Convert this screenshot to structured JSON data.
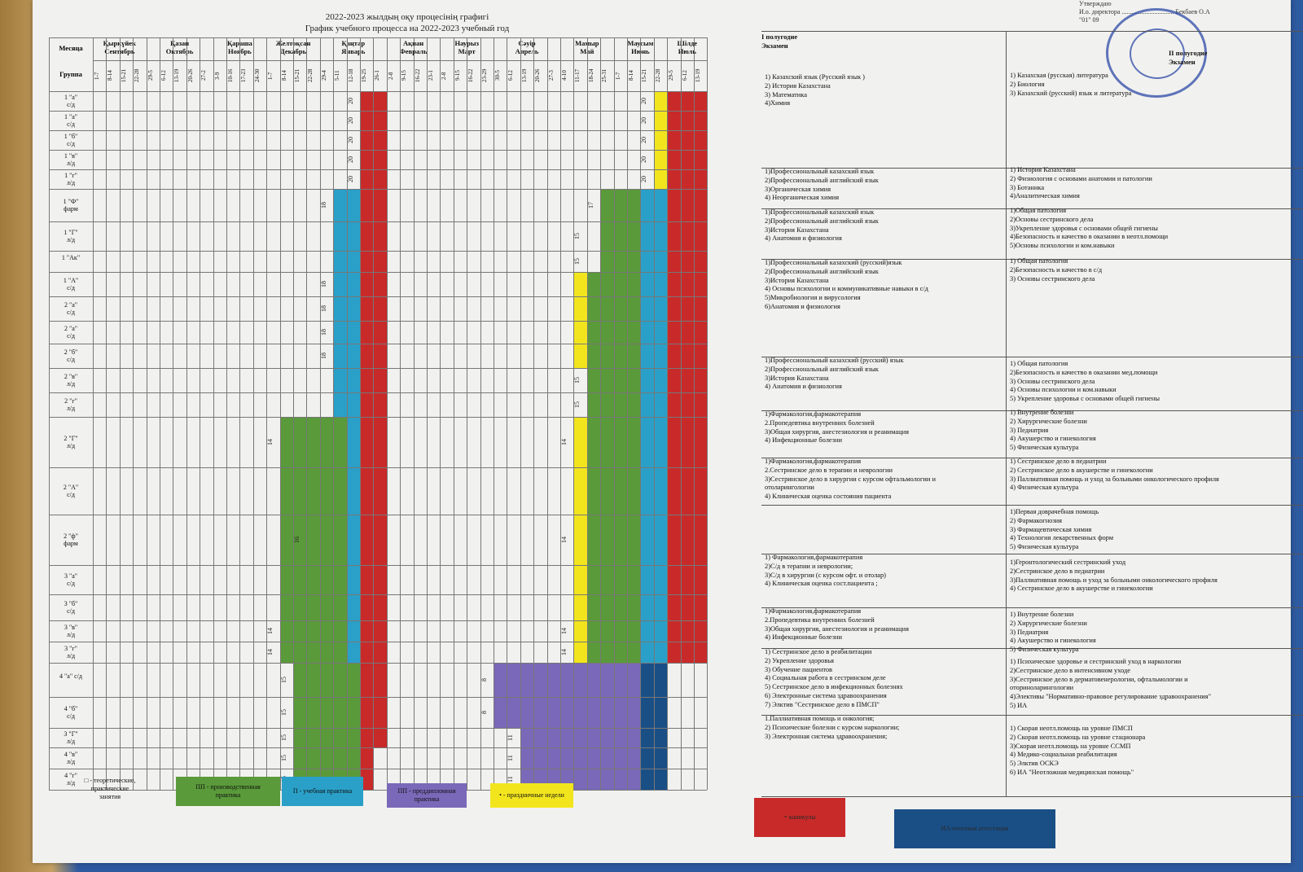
{
  "title_kz": "2022-2023 жылдың оқу процесінің графигі",
  "title_ru": "График учебного процесса на 2022-2023 учебный год",
  "approve": {
    "line1": "Утверждаю",
    "line2": "И.о. директора ................................ Бекбаев О.А",
    "line3": "\"01\" 09"
  },
  "header": {
    "month_label": "Месяца",
    "group_label": "Группа",
    "exam1_label": "І полугодие\nЭкзамен",
    "exam2_label": "ІІ полугодие\nЭкзамен"
  },
  "months": [
    {
      "kz": "Қыркүйек",
      "ru": "Сентябрь"
    },
    {
      "kz": "Қазан",
      "ru": "Октябрь"
    },
    {
      "kz": "Қараша",
      "ru": "Ноябрь"
    },
    {
      "kz": "Желтоқсан",
      "ru": "Декабрь"
    },
    {
      "kz": "Қаңтар",
      "ru": "Январь"
    },
    {
      "kz": "Ақпан",
      "ru": "Февраль"
    },
    {
      "kz": "Наурыз",
      "ru": "Март"
    },
    {
      "kz": "Сәуір",
      "ru": "Апрель"
    },
    {
      "kz": "Мамыр",
      "ru": "Май"
    },
    {
      "kz": "Маусым",
      "ru": "Июнь"
    },
    {
      "kz": "Шілде",
      "ru": "Июль"
    }
  ],
  "weeks": [
    "1-7",
    "8-14",
    "15-21",
    "22-28",
    "29-5",
    "6-12",
    "13-19",
    "20-26",
    "27-2",
    "3-9",
    "10-16",
    "17-23",
    "24-30",
    "1-7",
    "8-14",
    "15-21",
    "22-28",
    "29-4",
    "5-11",
    "12-18",
    "19-25",
    "26-1",
    "2-8",
    "9-15",
    "16-22",
    "23-1",
    "2-8",
    "9-15",
    "16-22",
    "23-29",
    "30-5",
    "6-12",
    "13-19",
    "20-26",
    "27-3",
    "4-10",
    "11-17",
    "18-24",
    "25-31",
    "1-7",
    "8-14",
    "15-21",
    "22-28",
    "29-5",
    "6-12",
    "13-19"
  ],
  "groups": [
    "1 \"а\"\nс/д",
    "1 \"а\"\nс/д",
    "1 \"б\"\nс/д",
    "1 \"в\"\nл/д",
    "1 \"г\"\nл/д",
    "1 \"Ф\"\nфарм",
    "1 \"Г\"\nл/д",
    "1 \"Ак\"",
    "1 \"А\"\nс/д",
    "2 \"а\"\nс/д",
    "2 \"а\"\nс/д",
    "2 \"б\"\nс/д",
    "2 \"в\"\nл/д",
    "2 \"г\"\nл/д",
    "2 \"Г\"\nл/д",
    "2 \"А\"\nс/д",
    "2 \"ф\"\nфарм",
    "3 \"а\"\nс/д",
    "3 \"б\"\nс/д",
    "3 \"в\"\nл/д",
    "3 \"г\"\nл/д",
    "4 \"а\" с/д",
    "4 \"б\"\nс/д",
    "3 \"Г\"\nл/д",
    "4 \"в\"\nл/д",
    "4 \"г\"\nл/д"
  ],
  "colors": {
    "theory": "#ffffff",
    "practice": "#5a9a3a",
    "educational": "#2aa0c8",
    "preddiploma": "#7a68b8",
    "holiday": "#f2e51e",
    "vacation": "#c82a2a",
    "final": "#1a4f86"
  },
  "cell_numbers": {
    "n20": "20",
    "n18": "18",
    "n17": "17",
    "n15": "15",
    "n14": "14",
    "n16": "16",
    "n11": "11",
    "n8": "8"
  },
  "exams_first": [
    "1) Казахский язык (Русский язык )\n2) История Казахстана\n3) Математика\n4)Химия",
    "1)Профессиональный казахский язык\n2)Профессиональный английский язык\n3)Органическая химия\n4) Неорганическая химия",
    "1)Профессиональный казахский язык\n2)Профессиональный английский язык\n3)История Казахстана\n4) Анатомия и физиология",
    "1)Профессиональный казахский (русский)язык\n2)Профессиональный английский язык\n3)История Казахстана\n4) Основы психологии и коммуникативные навыки в с/д\n5)Микробиология и вирусология\n6)Анатомия и физиология",
    "1)Профессиональный казахский (русский) язык\n2)Профессиональный английский язык\n3)История Казахстана\n4) Анатомия и физиология",
    "1)Фармакология,фармакотерапия\n2.Пропедевтика внутренних болезней\n3)Общая хирургия, анестезиология и реанимация\n4) Инфекционные болезни",
    "1)Фармакология,фармакотерапия\n2.Сестринское дело в терапии и неврологии\n3)Сестринское дело в хирургии с курсом офтальмологии и\nотоларингологии\n4) Клиническая оценка состояния пациента",
    "",
    "1) Фармакология,фармакотерапия\n2)С/д в терапии и неврологии;\n3)С/д в хирургии (с курсом офт. и отолар)\n4) Клиническая оценка сост.пациента ;",
    "1)Фармакология,фармакотерапия\n2.Пропедевтика внутренних болезней\n3)Общая хирургия, анестезиология и реанимация\n4) Инфекционные болезни",
    "1) Сестринское дело в реабилитации\n2) Укрепление здоровья\n3) Обучение пациентов\n4) Социальная работа в сестринском деле\n5) Сестринское дело в инфекционных болезнях\n6) Электронные система здравоохранения\n7) Элктив \"Сестринское дело в ПМСП\"",
    "1.Паллиативная помощь и онкология;\n2) Психические болезни с курсом наркологии;\n3) Электронная система здравоохранения;"
  ],
  "exams_second": [
    "1) Казахская (русская) литература\n2) Биология\n3) Казахский (русский) язык и литература",
    "1) История Казахстана\n2) Физиология с основами анатомии и патологии\n3) Ботаника\n4)Аналитическая химия",
    "1)Общая патология\n2)Основы сестринского дела\n3)Укрепление здоровья с основами общей гигиены\n4)Безопасность и качество в оказании в неотл.помощи\n5)Основы психологии и ком.навыки",
    "1) Общая патология\n2)Безопасность и качество в с/д\n3) Основы сестринского дела",
    "1) Общая патология\n2)Безопасность и качество в оказании мед.помощи\n3) Основы сестринского дела\n4) Основы психологии и ком.навыки\n5) Укрепление здоровья с основами общей гигиены",
    "1) Внутрение болезни\n2) Хирургические болезни\n3) Педиатрия\n4) Акушерство и гинекология\n5) Физическая культура",
    "1) Сестринское дело в педиатрии\n2) Сестринское дело в акушерстве и гинекологии\n3) Паллиативная помощь и уход за больными онкологического профиля\n4) Физическая культура",
    "1)Первая доврачебная помощь\n2) Фармакогнозия\n3) Фармацевтическая химия\n4) Технология лекарственных форм\n5) Физическая культура",
    "1)Геронтологический сестринский уход\n2)Сестринское дело в педиатрии\n3)Паллиативная помощь и уход за больными онкологического профиля\n4) Сестринское дело в акушерстве и гинекологии",
    "1) Внутрение болезни\n2) Хирургические болезни\n3) Педиатрия\n4) Акушерство и гинекология\n5) Физическая культура",
    "1) Психическое здоровье и сестринский уход в наркологии\n2)Сестринское дело в интенсивном уходе\n3)Сестринское дело в дерматовенерологии, офтальмологии и\nоториноларингологии\n4)Элективы \"Нормативно-правовое регулирование здравоохранения\"\n5) ИА",
    "1) Скорая неотл.помощь на уровне ПМСП\n2) Скорая неотл.помощь на уровне стационара\n3)Скорая неотл.помощь на уровне ССМП\n4) Медико-социальная реабилитация\n5) Элктив ОСКЭ\n6) ИА \"Неотложная медицинская помощь\""
  ],
  "legend": {
    "theory": "□ - теоретические,\nпрактические\nзанятия",
    "practice": "ПП - производственная\nпрактика",
    "educational": "П - учебная практика",
    "preddiploma": "ПП - преддипломная практика",
    "holiday": "• - праздничные недели",
    "vacation": "= каникулы",
    "final": "ИА-итоговая аттестация"
  }
}
